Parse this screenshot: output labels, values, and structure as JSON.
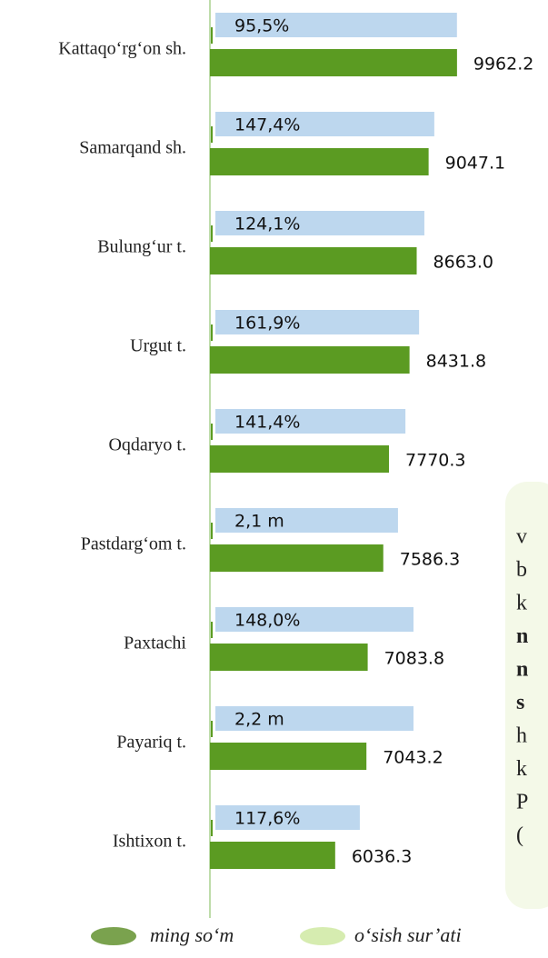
{
  "chart_data": {
    "type": "bar",
    "orientation": "horizontal",
    "categories": [
      "Kattaqo‘rg‘on sh.",
      "Samarqand sh.",
      "Bulung‘ur t.",
      "Urgut t.",
      "Oqdaryo t.",
      "Pastdarg‘om t.",
      "Paxtachi",
      "Payariq t.",
      "Ishtixon t."
    ],
    "series": [
      {
        "name": "ming so‘m",
        "color": "#5b9b22",
        "legend_color": "#7aa24e",
        "values": [
          9962.2,
          9047.1,
          8663.0,
          8431.8,
          7770.3,
          7586.3,
          7083.8,
          7043.2,
          6036.3
        ],
        "value_labels": [
          "9962.2",
          "9047.1",
          "8663.0",
          "8431.8",
          "7770.3",
          "7586.3",
          "7083.8",
          "7043.2",
          "6036.3"
        ]
      },
      {
        "name": "o‘sish sur’ati",
        "color": "#bdd7ee",
        "legend_color": "#d6ecb0",
        "values": [
          9960,
          9230,
          8910,
          8740,
          8300,
          8060,
          8560,
          8560,
          6830
        ]
      }
    ],
    "growth_labels": [
      "95,5%",
      "147,4%",
      "124,1%",
      "161,9%",
      "141,4%",
      "2,1 m",
      "148,0%",
      "2,2 m",
      "117,6%"
    ],
    "xlim": [
      2000,
      10200
    ],
    "side_text": [
      "v",
      "b",
      "k",
      "n",
      "n",
      "s",
      "h",
      "k",
      "P",
      "("
    ]
  }
}
